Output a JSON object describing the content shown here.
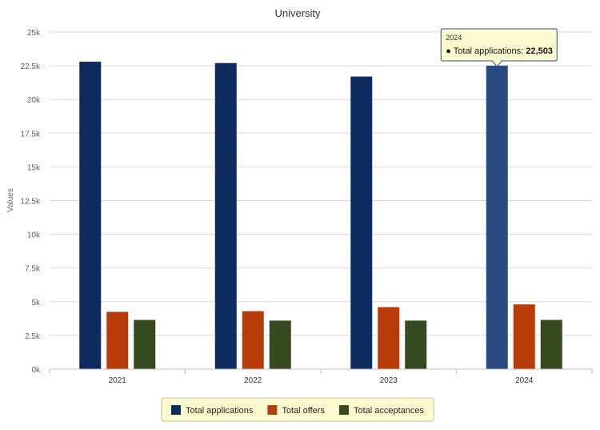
{
  "chart_data": {
    "type": "bar",
    "title": "University",
    "xlabel": "",
    "ylabel": "Values",
    "ylim": [
      0,
      25000
    ],
    "yticks": [
      0,
      2500,
      5000,
      7500,
      10000,
      12500,
      15000,
      17500,
      20000,
      22500,
      25000
    ],
    "ytick_labels": [
      "0k",
      "2.5k",
      "5k",
      "7.5k",
      "10k",
      "12.5k",
      "15k",
      "17.5k",
      "20k",
      "22.5k",
      "25k"
    ],
    "categories": [
      "2021",
      "2022",
      "2023",
      "2024"
    ],
    "series": [
      {
        "name": "Total applications",
        "color": "#0d2b5e",
        "values": [
          22800,
          22700,
          21700,
          22503
        ]
      },
      {
        "name": "Total offers",
        "color": "#b83c0a",
        "values": [
          4250,
          4300,
          4600,
          4800
        ]
      },
      {
        "name": "Total acceptances",
        "color": "#354a1e",
        "values": [
          3650,
          3600,
          3600,
          3650
        ]
      }
    ],
    "grid": true,
    "legend_position": "bottom-center",
    "highlight": {
      "category_index": 3,
      "series_index": 0,
      "color": "#284a7e"
    },
    "tooltip": {
      "category": "2024",
      "series": "Total applications",
      "value": "22,503"
    }
  }
}
